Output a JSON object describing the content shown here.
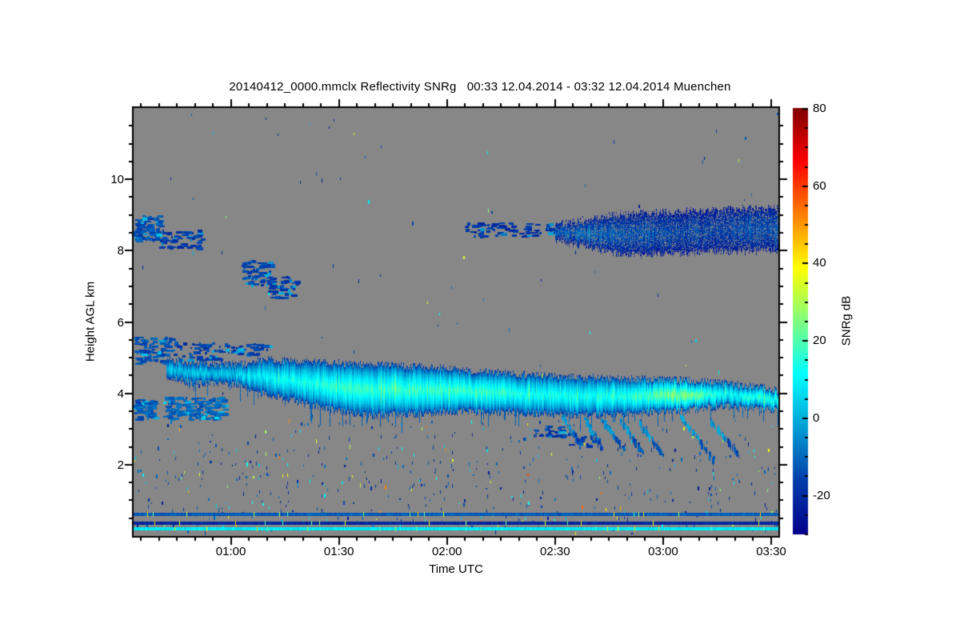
{
  "header": {
    "title": "20140412_0000.mmclx Reflectivity SNRg   00:33 12.04.2014 - 03:32 12.04.2014 Muenchen"
  },
  "axes": {
    "x": {
      "label": "Time UTC",
      "range_min": [
        33,
        212
      ],
      "range_utc": [
        "00:33",
        "03:32"
      ],
      "minor_step_min": 5,
      "ticks": [
        {
          "min": 60,
          "label": "01:00"
        },
        {
          "min": 90,
          "label": "01:30"
        },
        {
          "min": 120,
          "label": "02:00"
        },
        {
          "min": 150,
          "label": "02:30"
        },
        {
          "min": 180,
          "label": "03:00"
        },
        {
          "min": 210,
          "label": "03:30"
        }
      ]
    },
    "y": {
      "label": "Height AGL km",
      "range_km": [
        0,
        12
      ],
      "minor_step_km": 0.5,
      "ticks": [
        {
          "km": 2,
          "label": "2"
        },
        {
          "km": 4,
          "label": "4"
        },
        {
          "km": 6,
          "label": "6"
        },
        {
          "km": 8,
          "label": "8"
        },
        {
          "km": 10,
          "label": "10"
        }
      ]
    }
  },
  "colorbar": {
    "label": "SNRg dB",
    "range_db": [
      -30,
      80
    ],
    "minor_step_db": 5,
    "ticks": [
      {
        "db": 80,
        "label": "80"
      },
      {
        "db": 60,
        "label": "60"
      },
      {
        "db": 40,
        "label": "40"
      },
      {
        "db": 20,
        "label": "20"
      },
      {
        "db": 0,
        "label": "0"
      },
      {
        "db": -20,
        "label": "-20"
      }
    ],
    "colormap_stops": [
      {
        "t": 0.0,
        "rgb": [
          0,
          0,
          139
        ]
      },
      {
        "t": 0.125,
        "rgb": [
          0,
          60,
          170
        ]
      },
      {
        "t": 0.375,
        "rgb": [
          0,
          255,
          255
        ]
      },
      {
        "t": 0.625,
        "rgb": [
          255,
          255,
          0
        ]
      },
      {
        "t": 0.875,
        "rgb": [
          255,
          0,
          0
        ]
      },
      {
        "t": 1.0,
        "rgb": [
          128,
          0,
          0
        ]
      }
    ]
  },
  "chart_data": {
    "type": "heatmap",
    "title": "20140412_0000.mmclx Reflectivity SNRg   00:33 12.04.2014 - 03:32 12.04.2014 Muenchen",
    "xlabel": "Time UTC",
    "ylabel": "Height AGL km",
    "value_label": "SNRg dB",
    "value_range_db": [
      -30,
      80
    ],
    "background_color": "#878787",
    "frame_color": "#000000",
    "cloud_layers": [
      {
        "name": "mid-level main cloud band",
        "time_utc": "00:42-03:32",
        "height_km": [
          3.4,
          5.3
        ],
        "snr_db": [
          -20,
          30
        ]
      },
      {
        "name": "upper cloud deck",
        "time_utc": "02:05-03:32",
        "height_km": [
          7.9,
          9.2
        ],
        "snr_db": [
          -26,
          -8
        ]
      },
      {
        "name": "upper-left cirrus patches",
        "time_utc": "00:33-00:52",
        "height_km": [
          8.1,
          9.0
        ],
        "snr_db": [
          -22,
          -12
        ]
      },
      {
        "name": "mid-left patch",
        "time_utc": "01:03-01:18",
        "height_km": [
          6.7,
          7.75
        ],
        "snr_db": [
          -20,
          -13
        ]
      },
      {
        "name": "low-left patches",
        "time_utc": "00:33-01:00",
        "height_km": [
          3.3,
          3.9
        ],
        "snr_db": [
          -16,
          4
        ]
      },
      {
        "name": "ground clutter stripes",
        "time_utc": "00:33-03:32",
        "height_km": [
          0.21,
          0.36,
          0.6
        ],
        "snr_db": [
          -21,
          8
        ]
      }
    ],
    "main_band": {
      "edge_snr": -20,
      "points": [
        [
          42,
          4.45,
          4.95,
          2
        ],
        [
          50,
          4.3,
          4.85,
          6
        ],
        [
          57,
          4.3,
          4.8,
          4
        ],
        [
          62,
          4.25,
          4.8,
          6
        ],
        [
          69,
          4.0,
          4.95,
          10
        ],
        [
          78,
          3.8,
          4.9,
          14
        ],
        [
          88,
          3.55,
          4.85,
          16
        ],
        [
          100,
          3.4,
          4.8,
          18
        ],
        [
          112,
          3.45,
          4.75,
          17
        ],
        [
          120,
          3.5,
          4.7,
          19
        ],
        [
          132,
          3.5,
          4.6,
          17
        ],
        [
          145,
          3.45,
          4.5,
          14
        ],
        [
          158,
          3.4,
          4.45,
          13
        ],
        [
          170,
          3.45,
          4.4,
          15
        ],
        [
          180,
          3.5,
          4.4,
          23
        ],
        [
          188,
          3.55,
          4.35,
          26
        ],
        [
          196,
          3.65,
          4.3,
          12
        ],
        [
          204,
          3.6,
          4.2,
          15
        ],
        [
          212,
          3.55,
          4.1,
          17
        ]
      ]
    },
    "upper_band": {
      "edge_snr": -26,
      "holes": 0.22,
      "points": [
        [
          150,
          8.3,
          8.75,
          -12
        ],
        [
          158,
          8.15,
          8.85,
          -10
        ],
        [
          166,
          7.95,
          9.0,
          -13
        ],
        [
          175,
          7.9,
          9.05,
          -14
        ],
        [
          185,
          7.95,
          9.1,
          -16
        ],
        [
          195,
          8.0,
          9.15,
          -16
        ],
        [
          205,
          8.0,
          9.2,
          -15
        ],
        [
          212,
          8.05,
          9.2,
          -13
        ]
      ]
    },
    "patch_clusters": [
      [
        33,
        43,
        4.85,
        5.6,
        95,
        -14
      ],
      [
        44,
        57,
        4.95,
        5.45,
        55,
        -16
      ],
      [
        58,
        70,
        5.05,
        5.4,
        35,
        -17
      ],
      [
        33,
        39,
        3.3,
        3.85,
        70,
        -12
      ],
      [
        41,
        58,
        3.3,
        3.9,
        150,
        -10
      ],
      [
        33,
        40,
        8.3,
        9.0,
        100,
        -14
      ],
      [
        40,
        52,
        8.1,
        8.6,
        60,
        -17
      ],
      [
        63,
        71,
        7.05,
        7.75,
        70,
        -15
      ],
      [
        70,
        78,
        6.7,
        7.3,
        45,
        -16
      ],
      [
        125,
        151,
        8.4,
        8.8,
        80,
        -18
      ],
      [
        143,
        152,
        2.8,
        3.1,
        28,
        -16
      ],
      [
        153,
        162,
        2.55,
        2.95,
        22,
        -17
      ]
    ],
    "fall_streaks": [
      [
        152,
        3.4,
        2.6,
        5
      ],
      [
        158,
        3.35,
        2.5,
        5
      ],
      [
        163,
        3.3,
        2.45,
        6
      ],
      [
        168,
        3.3,
        2.4,
        6
      ],
      [
        173,
        3.25,
        2.3,
        7
      ],
      [
        185,
        3.4,
        2.15,
        9
      ],
      [
        193,
        3.3,
        2.3,
        8
      ]
    ],
    "clutter_stripes": [
      {
        "height_km": 0.6,
        "thickness_px": 4,
        "snr_db": -12
      },
      {
        "height_km": 0.36,
        "thickness_px": 4,
        "snr_db": -21
      },
      {
        "height_km": 0.21,
        "thickness_px": 4,
        "snr_db": 8
      }
    ],
    "speckle_noise": [
      {
        "h_min": 0.1,
        "h_max": 2.5,
        "count": 430
      },
      {
        "h_min": 2.5,
        "h_max": 3.3,
        "count": 90
      },
      {
        "h_min": 0.1,
        "h_max": 11.9,
        "count": 110
      }
    ]
  }
}
